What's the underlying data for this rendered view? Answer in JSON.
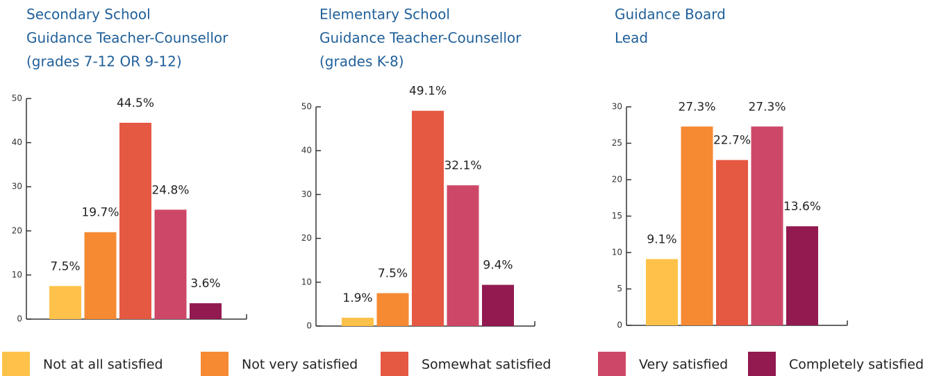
{
  "chart_data": [
    {
      "type": "bar",
      "title": [
        "Secondary School",
        "Guidance Teacher-Counsellor",
        "(grades 7-12 OR 9-12)"
      ],
      "values": [
        7.5,
        19.7,
        44.5,
        24.8,
        3.6
      ],
      "value_labels": [
        "7.5%",
        "19.7%",
        "44.5%",
        "24.8%",
        "3.6%"
      ],
      "ylim": [
        0,
        50
      ],
      "yticks": [
        0,
        10,
        20,
        30,
        40,
        50
      ]
    },
    {
      "type": "bar",
      "title": [
        "Elementary School",
        "Guidance Teacher-Counsellor",
        "(grades K-8)"
      ],
      "values": [
        1.9,
        7.5,
        49.1,
        32.1,
        9.4
      ],
      "value_labels": [
        "1.9%",
        "7.5%",
        "49.1%",
        "32.1%",
        "9.4%"
      ],
      "ylim": [
        0,
        50
      ],
      "yticks": [
        0,
        10,
        20,
        30,
        40,
        50
      ]
    },
    {
      "type": "bar",
      "title": [
        "Guidance Board",
        "Lead"
      ],
      "values": [
        9.1,
        27.3,
        22.7,
        27.3,
        13.6
      ],
      "value_labels": [
        "9.1%",
        "27.3%",
        "22.7%",
        "27.3%",
        "13.6%"
      ],
      "ylim": [
        0,
        30
      ],
      "yticks": [
        0,
        5,
        10,
        15,
        20,
        25,
        30
      ]
    }
  ],
  "legend": {
    "categories": [
      "Not at all satisfied",
      "Not very satisfied",
      "Somewhat satisfied",
      "Very satisfied",
      "Completely satisfied"
    ],
    "colors": [
      "#fec24a",
      "#f58a32",
      "#e55842",
      "#cd4868",
      "#921a50"
    ]
  }
}
